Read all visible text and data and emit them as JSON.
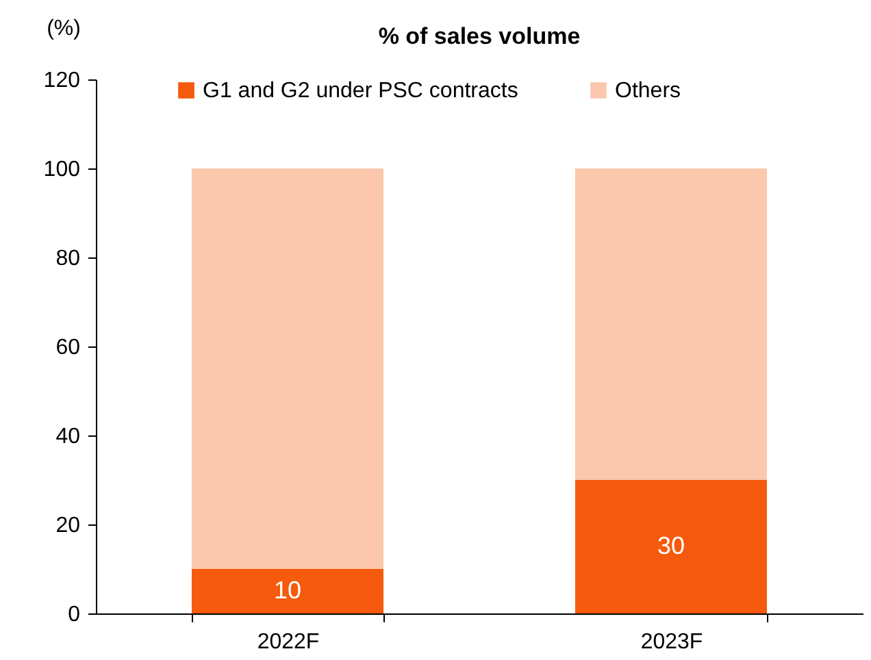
{
  "chart_data": {
    "type": "bar",
    "title": "% of sales volume",
    "ylabel": "(%)",
    "stacked": true,
    "categories": [
      "2022F",
      "2023F"
    ],
    "series": [
      {
        "name": "G1 and G2 under PSC contracts",
        "color": "#f55a0e",
        "values": [
          10,
          30
        ],
        "value_labels": [
          "10",
          "30"
        ]
      },
      {
        "name": "Others",
        "color": "#fbc8ae",
        "values": [
          90,
          70
        ]
      }
    ],
    "ylim": [
      0,
      120
    ],
    "yticks": [
      0,
      20,
      40,
      60,
      80,
      100,
      120
    ],
    "legend": "top",
    "grid": false
  }
}
